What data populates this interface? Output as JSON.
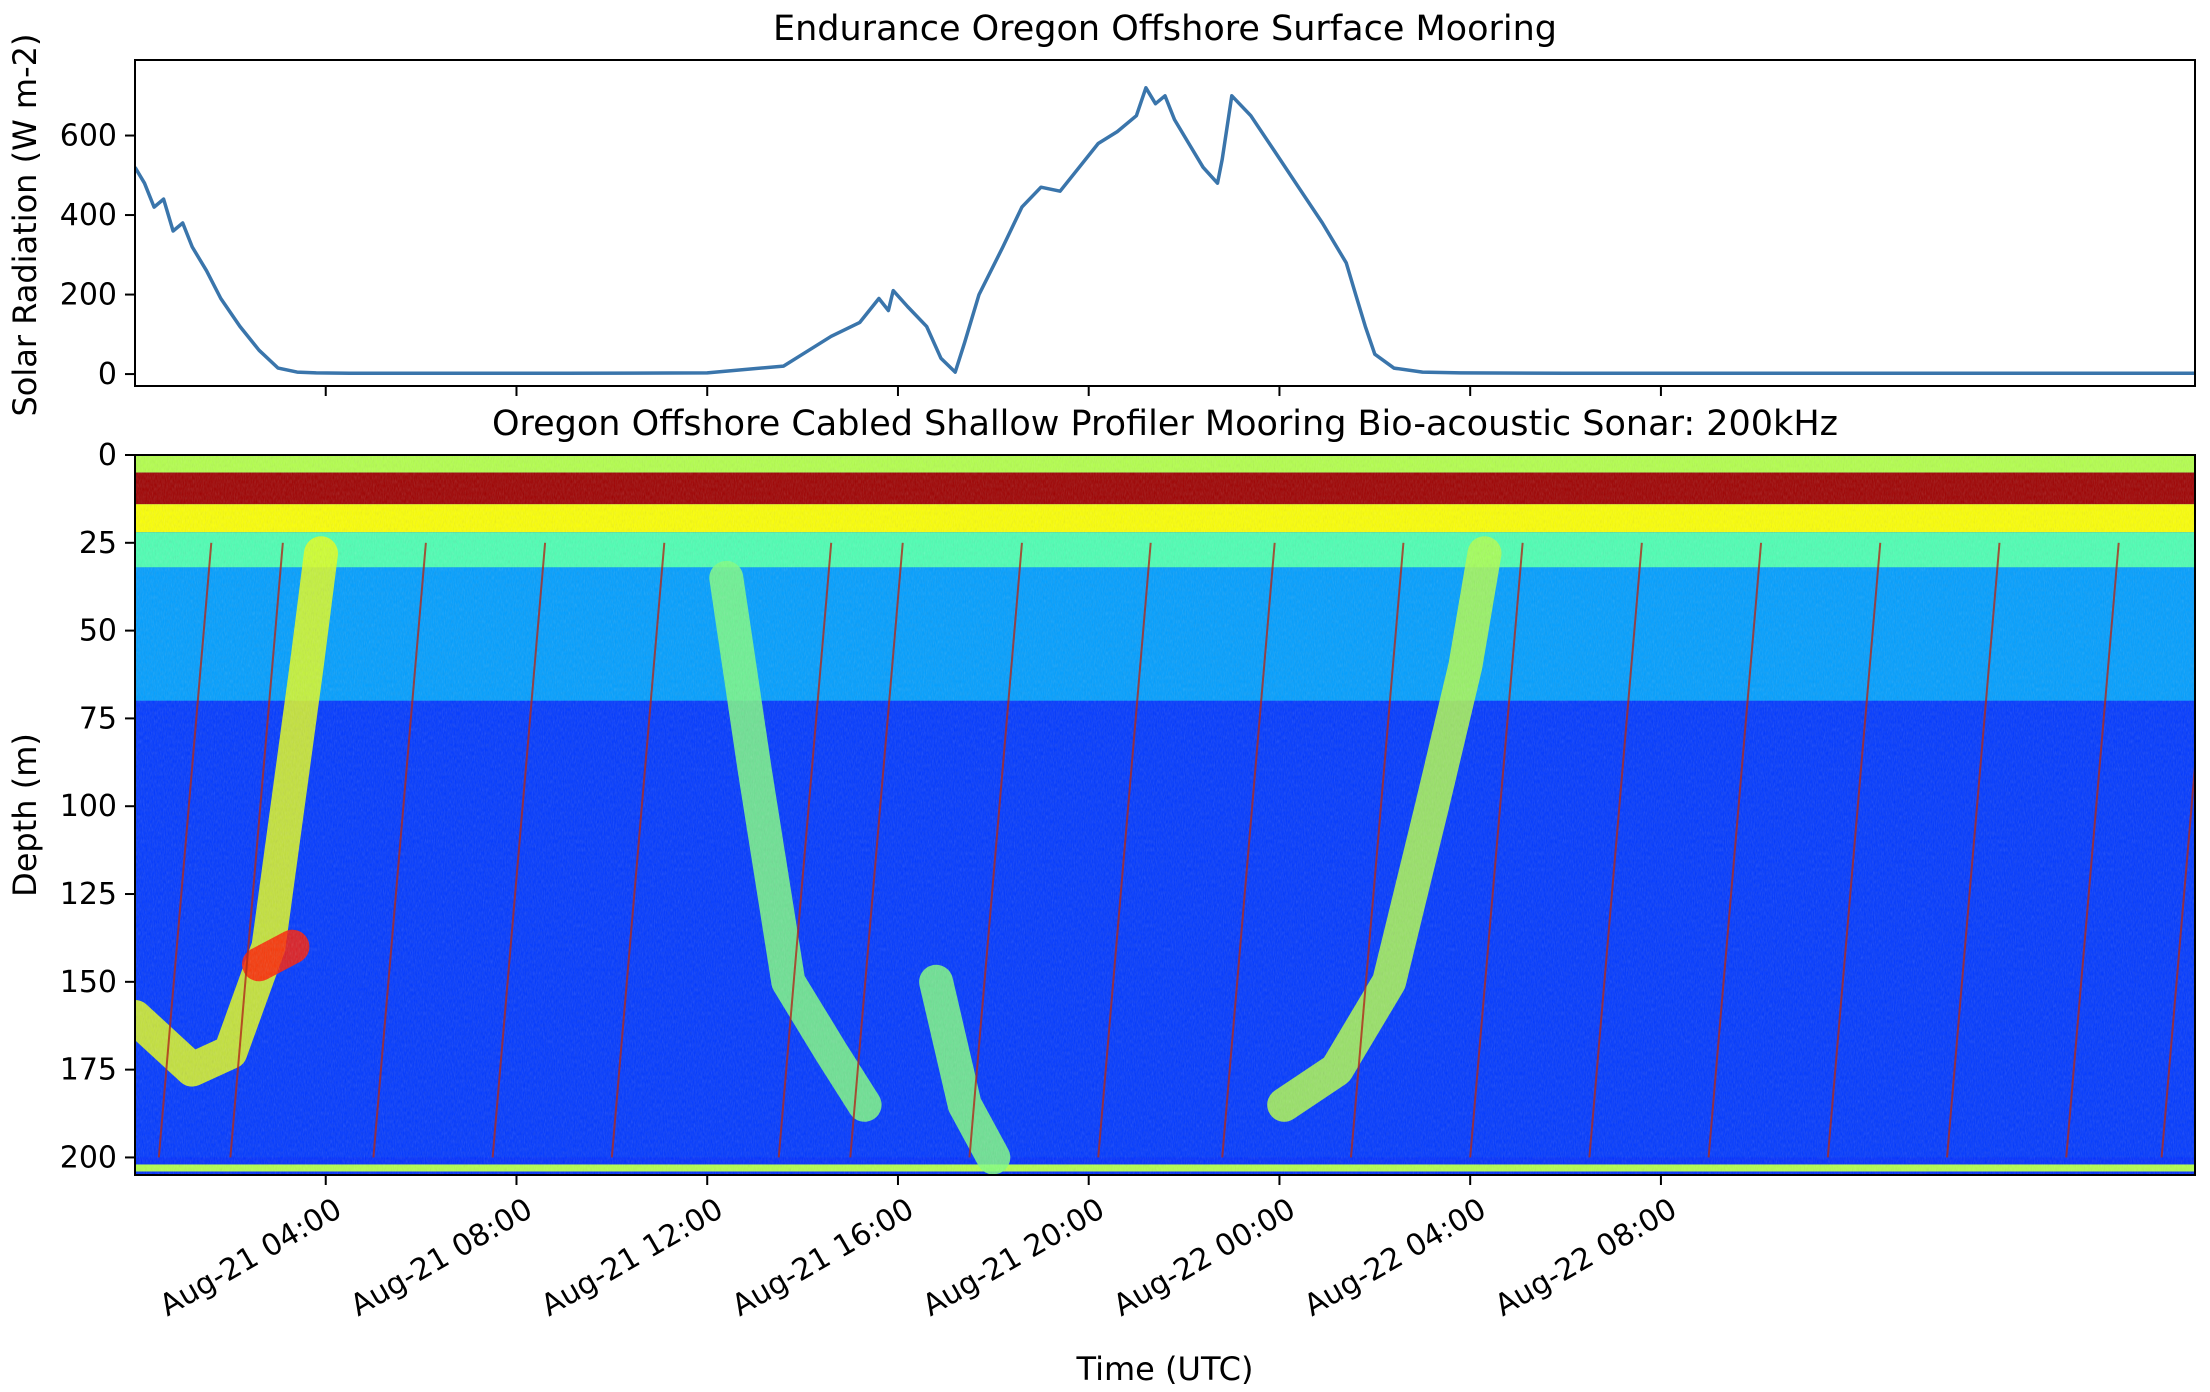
{
  "chart_data": [
    {
      "type": "line",
      "title": "Endurance Oregon Offshore Surface Mooring",
      "ylabel": "Solar Radiation (W m-2)",
      "ylim": [
        -30,
        790
      ],
      "yticks": [
        0,
        200,
        400,
        600
      ],
      "xlim_hours": [
        0,
        43.2
      ],
      "x_start": "Aug-21 00:00",
      "line_color": "#3a75ab",
      "series": [
        {
          "x_hours": [
            0.0,
            0.2,
            0.4,
            0.6,
            0.8,
            1.0,
            1.2,
            1.5,
            1.8,
            2.2,
            2.6,
            3.0,
            3.4,
            3.8,
            4.5,
            6,
            9,
            12,
            13.6,
            14.0,
            14.6,
            15.2,
            15.6,
            15.8,
            15.9,
            16.2,
            16.6,
            16.9,
            17.2,
            17.4,
            17.7,
            18.2,
            18.6,
            19.0,
            19.4,
            19.8,
            20.2,
            20.6,
            21.0,
            21.2,
            21.4,
            21.6,
            21.8,
            22.1,
            22.4,
            22.7,
            22.8,
            23.0,
            23.4,
            23.9,
            24.4,
            24.9,
            25.4,
            25.6,
            25.8,
            26.0,
            26.4,
            27.0,
            27.8,
            30,
            35,
            40,
            43.2
          ],
          "y": [
            520,
            480,
            420,
            440,
            360,
            380,
            320,
            260,
            190,
            120,
            60,
            15,
            5,
            3,
            2,
            2,
            2,
            3,
            20,
            50,
            95,
            130,
            190,
            160,
            210,
            170,
            120,
            40,
            5,
            80,
            200,
            320,
            420,
            470,
            460,
            520,
            580,
            610,
            650,
            720,
            680,
            700,
            640,
            580,
            520,
            480,
            540,
            700,
            650,
            560,
            470,
            380,
            280,
            200,
            120,
            50,
            15,
            5,
            3,
            2,
            2,
            2,
            2
          ]
        }
      ]
    },
    {
      "type": "heatmap",
      "title": "Oregon Offshore Cabled Shallow Profiler Mooring Bio-acoustic Sonar: 200kHz",
      "ylabel": "Depth (m)",
      "xlabel": "Time (UTC)",
      "ylim": [
        205,
        0
      ],
      "yticks": [
        0,
        25,
        50,
        75,
        100,
        125,
        150,
        175,
        200
      ],
      "xlim_hours": [
        0,
        43.2
      ],
      "xticks": [
        {
          "hour": 4,
          "label": "Aug-21 04:00"
        },
        {
          "hour": 8,
          "label": "Aug-21 08:00"
        },
        {
          "hour": 12,
          "label": "Aug-21 12:00"
        },
        {
          "hour": 16,
          "label": "Aug-21 16:00"
        },
        {
          "hour": 20,
          "label": "Aug-21 20:00"
        },
        {
          "hour": 24,
          "label": "Aug-22 00:00"
        },
        {
          "hour": 28,
          "label": "Aug-22 04:00"
        },
        {
          "hour": 32,
          "label": "Aug-22 08:00"
        }
      ],
      "colormap": "jet",
      "surface_layer_depth_m": 10,
      "layers": [
        {
          "depth_range_m": [
            0,
            5
          ],
          "level": 0.55
        },
        {
          "depth_range_m": [
            5,
            14
          ],
          "level": 0.97
        },
        {
          "depth_range_m": [
            14,
            22
          ],
          "level": 0.62
        },
        {
          "depth_range_m": [
            22,
            32
          ],
          "level": 0.45
        },
        {
          "depth_range_m": [
            32,
            70
          ],
          "level": 0.28
        },
        {
          "depth_range_m": [
            70,
            200
          ],
          "level": 0.18
        },
        {
          "depth_range_m": [
            202,
            204
          ],
          "level": 0.55
        }
      ],
      "migration_bands": [
        {
          "points_hours_depth": [
            [
              0,
              160
            ],
            [
              1.2,
              175
            ],
            [
              2.0,
              170
            ],
            [
              2.8,
              140
            ],
            [
              3.6,
              60
            ],
            [
              3.9,
              28
            ]
          ],
          "level": 0.6
        },
        {
          "points_hours_depth": [
            [
              12.4,
              35
            ],
            [
              13.0,
              90
            ],
            [
              13.7,
              150
            ],
            [
              14.6,
              170
            ],
            [
              15.3,
              185
            ]
          ],
          "level": 0.5
        },
        {
          "points_hours_depth": [
            [
              16.8,
              150
            ],
            [
              17.4,
              185
            ],
            [
              18.0,
              200
            ]
          ],
          "level": 0.5
        },
        {
          "points_hours_depth": [
            [
              24.1,
              185
            ],
            [
              25.2,
              175
            ],
            [
              26.3,
              150
            ],
            [
              27.2,
              100
            ],
            [
              27.9,
              60
            ],
            [
              28.3,
              28
            ]
          ],
          "level": 0.55
        },
        {
          "points_hours_depth": [
            [
              2.6,
              145
            ],
            [
              3.3,
              140
            ]
          ],
          "level": 0.85
        }
      ],
      "profiler_casts_hours": [
        0.5,
        2.0,
        5.0,
        7.5,
        10.0,
        13.5,
        15.0,
        17.5,
        20.2,
        22.8,
        25.5,
        28.0,
        30.5,
        33.0,
        35.5,
        38.0,
        40.5,
        42.5
      ]
    }
  ]
}
